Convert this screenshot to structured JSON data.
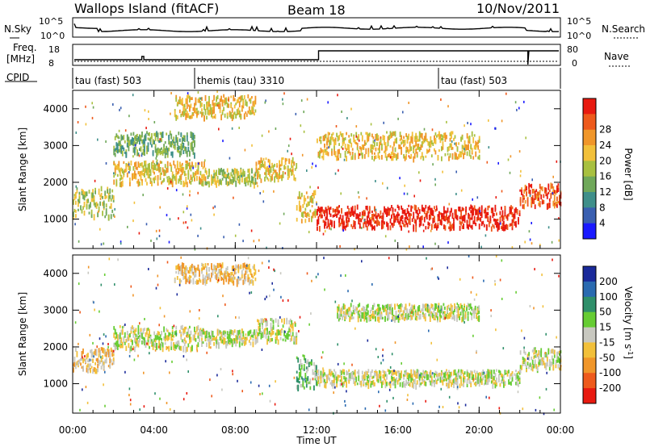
{
  "header": {
    "left": "Wallops Island (fitACF)",
    "center": "Beam 18",
    "right": "10/Nov/2011"
  },
  "noise_panel": {
    "left_label": "N.Sky",
    "left_ticks": [
      "10^5",
      "10^0"
    ],
    "right_label": "N.Search",
    "right_ticks": [
      "10^5",
      "10^0"
    ]
  },
  "freq_panel": {
    "left_label_1": "Freq.",
    "left_label_2": "[MHz]",
    "left_ticks": [
      "18",
      "8"
    ],
    "right_label": "Nave",
    "right_ticks": [
      "80",
      "0"
    ]
  },
  "cpid": {
    "label": "CPID",
    "segments": [
      {
        "label": "tau (fast) 503",
        "start_hour": 0
      },
      {
        "label": "themis (tau) 3310",
        "start_hour": 6
      },
      {
        "label": "tau (fast) 503",
        "start_hour": 18
      }
    ]
  },
  "chart_data": [
    {
      "type": "heatmap",
      "quantity": "Power",
      "ylabel": "Slant Range [km]",
      "xlabel": "Time UT",
      "x_range_hours": [
        0,
        24
      ],
      "ylim": [
        200,
        4500
      ],
      "y_ticks": [
        1000,
        2000,
        3000,
        4000
      ],
      "colorbar": {
        "label": "Power [dB]",
        "ticks": [
          "4",
          "8",
          "12",
          "16",
          "20",
          "24",
          "28"
        ],
        "colors": [
          "#1a1aff",
          "#3a5fb0",
          "#3f8f8a",
          "#6fa85a",
          "#a8c040",
          "#f2c03a",
          "#f0962a",
          "#ee5a1c",
          "#e81a10"
        ]
      },
      "echo_bands": [
        {
          "start_hour": 0.0,
          "end_hour": 2.0,
          "range_from": 1100,
          "range_to": 1900,
          "level": 4
        },
        {
          "start_hour": 2.0,
          "end_hour": 6.5,
          "range_from": 2000,
          "range_to": 2600,
          "level": 5
        },
        {
          "start_hour": 6.5,
          "end_hour": 9.0,
          "range_from": 2000,
          "range_to": 2400,
          "level": 4
        },
        {
          "start_hour": 9.0,
          "end_hour": 11.0,
          "range_from": 2100,
          "range_to": 2700,
          "level": 5
        },
        {
          "start_hour": 11.0,
          "end_hour": 12.0,
          "range_from": 1000,
          "range_to": 1800,
          "level": 5
        },
        {
          "start_hour": 12.0,
          "end_hour": 22.0,
          "range_from": 800,
          "range_to": 1400,
          "level": 8
        },
        {
          "start_hour": 22.0,
          "end_hour": 24.0,
          "range_from": 1400,
          "range_to": 2000,
          "level": 7
        },
        {
          "start_hour": 12.0,
          "end_hour": 20.0,
          "range_from": 2700,
          "range_to": 3400,
          "level": 5
        },
        {
          "start_hour": 5.0,
          "end_hour": 9.0,
          "range_from": 3800,
          "range_to": 4400,
          "level": 5
        },
        {
          "start_hour": 2.0,
          "end_hour": 6.0,
          "range_from": 2800,
          "range_to": 3400,
          "level": 3
        }
      ]
    },
    {
      "type": "heatmap",
      "quantity": "Velocity",
      "ylabel": "Slant Range [km]",
      "xlabel": "Time UT",
      "x_range_hours": [
        0,
        24
      ],
      "ylim": [
        200,
        4500
      ],
      "y_ticks": [
        1000,
        2000,
        3000,
        4000
      ],
      "colorbar": {
        "label": "Velocity [m s^-1]",
        "ticks": [
          "200",
          "100",
          "50",
          "15",
          "-15",
          "-50",
          "-100",
          "-200"
        ],
        "colors": [
          "#1a2a9a",
          "#2a6ab0",
          "#2f8f6a",
          "#66cc33",
          "#c8c8c0",
          "#f2c03a",
          "#f0962a",
          "#ee5a1c",
          "#e81a10"
        ]
      },
      "echo_bands": [
        {
          "start_hour": 0.0,
          "end_hour": 2.0,
          "range_from": 1400,
          "range_to": 2000,
          "level": 5
        },
        {
          "start_hour": 2.0,
          "end_hour": 6.5,
          "range_from": 2000,
          "range_to": 2600,
          "level": 4
        },
        {
          "start_hour": 6.5,
          "end_hour": 9.0,
          "range_from": 2100,
          "range_to": 2500,
          "level": 4
        },
        {
          "start_hour": 9.0,
          "end_hour": 11.0,
          "range_from": 2200,
          "range_to": 2800,
          "level": 4
        },
        {
          "start_hour": 11.0,
          "end_hour": 12.0,
          "range_from": 900,
          "range_to": 1800,
          "level": 3
        },
        {
          "start_hour": 12.0,
          "end_hour": 22.0,
          "range_from": 1000,
          "range_to": 1400,
          "level": 4
        },
        {
          "start_hour": 22.0,
          "end_hour": 24.0,
          "range_from": 1400,
          "range_to": 2000,
          "level": 4
        },
        {
          "start_hour": 13.0,
          "end_hour": 20.0,
          "range_from": 2800,
          "range_to": 3200,
          "level": 4
        },
        {
          "start_hour": 5.0,
          "end_hour": 9.0,
          "range_from": 3800,
          "range_to": 4300,
          "level": 5
        }
      ]
    }
  ],
  "x_axis": {
    "ticks": [
      "00:00",
      "04:00",
      "08:00",
      "12:00",
      "16:00",
      "20:00",
      "00:00"
    ],
    "label": "Time UT"
  }
}
